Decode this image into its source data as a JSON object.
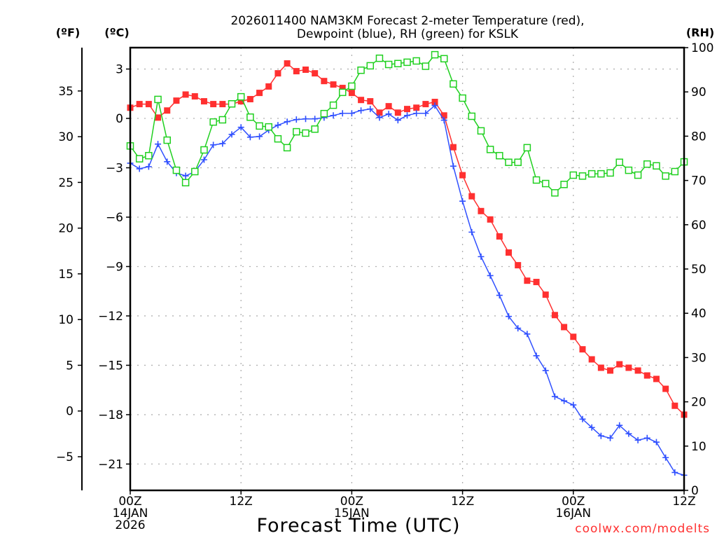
{
  "chart_data": {
    "type": "line",
    "title_line1": "2026011400 NAM3KM Forecast 2-meter Temperature (red),",
    "title_line2": "Dewpoint (blue), RH (green) for KSLK",
    "xlabel": "Forecast Time (UTC)",
    "credit": "coolwx.com/modelts",
    "x_range_hours": [
      0,
      60
    ],
    "x_ticks": [
      {
        "hour": 0,
        "lines": [
          "00Z",
          "14JAN",
          "2026"
        ]
      },
      {
        "hour": 12,
        "lines": [
          "12Z"
        ]
      },
      {
        "hour": 24,
        "lines": [
          "00Z",
          "15JAN"
        ]
      },
      {
        "hour": 36,
        "lines": [
          "12Z"
        ]
      },
      {
        "hour": 48,
        "lines": [
          "00Z",
          "16JAN"
        ]
      },
      {
        "hour": 60,
        "lines": [
          "12Z"
        ]
      }
    ],
    "axes": {
      "celsius": {
        "label": "(ºC)",
        "range": [
          -22.6,
          4.3
        ],
        "ticks": [
          3,
          0,
          -3,
          -6,
          -9,
          -12,
          -15,
          -18,
          -21
        ],
        "tick_labels": [
          "3",
          "0",
          "−3",
          "−6",
          "−9",
          "−12",
          "−15",
          "−18",
          "−21"
        ]
      },
      "fahrenheit": {
        "label": "(ºF)",
        "ticks": [
          35,
          30,
          25,
          20,
          15,
          10,
          5,
          0,
          -5
        ],
        "tick_labels": [
          "35",
          "30",
          "25",
          "20",
          "15",
          "10",
          "5",
          "0",
          "−5"
        ]
      },
      "rh": {
        "label": "(RH)",
        "range": [
          0,
          100
        ],
        "ticks": [
          100,
          90,
          80,
          70,
          60,
          50,
          40,
          30,
          20,
          10,
          0
        ],
        "tick_labels": [
          "100",
          "90",
          "80",
          "70",
          "60",
          "50",
          "40",
          "30",
          "20",
          "10",
          "0"
        ]
      }
    },
    "grid": true,
    "series": [
      {
        "name": "Temperature",
        "units": "°C",
        "color": "#ff3030",
        "marker": "filled-square",
        "values": [
          0.65,
          0.87,
          0.87,
          0.05,
          0.48,
          1.08,
          1.45,
          1.34,
          1.04,
          0.87,
          0.87,
          0.87,
          1.04,
          1.17,
          1.55,
          1.94,
          2.74,
          3.34,
          2.87,
          2.96,
          2.74,
          2.27,
          2.06,
          1.85,
          1.55,
          1.12,
          1.04,
          0.35,
          0.74,
          0.35,
          0.57,
          0.65,
          0.87,
          1.0,
          0.18,
          -1.75,
          -3.45,
          -4.73,
          -5.63,
          -6.14,
          -7.17,
          -8.15,
          -8.92,
          -9.86,
          -9.94,
          -10.71,
          -11.95,
          -12.68,
          -13.27,
          -14.03,
          -14.64,
          -15.15,
          -15.32,
          -14.94,
          -15.15,
          -15.32,
          -15.62,
          -15.83,
          -16.43,
          -17.46,
          -18.0
        ]
      },
      {
        "name": "Dewpoint",
        "units": "°C",
        "color": "#3050ff",
        "marker": "plus",
        "values": [
          -2.72,
          -3.06,
          -2.93,
          -1.56,
          -2.63,
          -3.32,
          -3.49,
          -3.24,
          -2.51,
          -1.61,
          -1.53,
          -0.97,
          -0.54,
          -1.14,
          -1.1,
          -0.71,
          -0.41,
          -0.2,
          -0.07,
          -0.03,
          -0.03,
          0.05,
          0.18,
          0.31,
          0.31,
          0.48,
          0.57,
          0.05,
          0.27,
          -0.11,
          0.18,
          0.31,
          0.31,
          0.78,
          -0.11,
          -2.9,
          -5.03,
          -6.91,
          -8.4,
          -9.55,
          -10.75,
          -12.03,
          -12.75,
          -13.1,
          -14.42,
          -15.32,
          -16.9,
          -17.16,
          -17.41,
          -18.27,
          -18.78,
          -19.29,
          -19.42,
          -18.65,
          -19.16,
          -19.55,
          -19.42,
          -19.67,
          -20.61,
          -21.51,
          -21.68
        ]
      },
      {
        "name": "RH",
        "units": "%",
        "color": "#20d020",
        "marker": "open-square",
        "values": [
          77.8,
          74.9,
          75.6,
          88.3,
          79.1,
          72.3,
          69.5,
          72.0,
          76.9,
          83.2,
          83.7,
          87.3,
          88.9,
          84.3,
          82.3,
          82.1,
          79.4,
          77.4,
          81.0,
          80.7,
          81.6,
          85.1,
          87.0,
          89.9,
          91.3,
          94.9,
          95.9,
          97.6,
          96.2,
          96.4,
          96.7,
          97.0,
          95.8,
          98.4,
          97.5,
          91.8,
          88.6,
          84.5,
          81.2,
          77.0,
          75.6,
          74.1,
          74.1,
          77.4,
          70.1,
          69.3,
          67.2,
          69.1,
          71.2,
          71.0,
          71.5,
          71.5,
          71.7,
          74.1,
          72.3,
          71.2,
          73.7,
          73.3,
          71.0,
          72.0,
          74.2
        ]
      }
    ]
  }
}
